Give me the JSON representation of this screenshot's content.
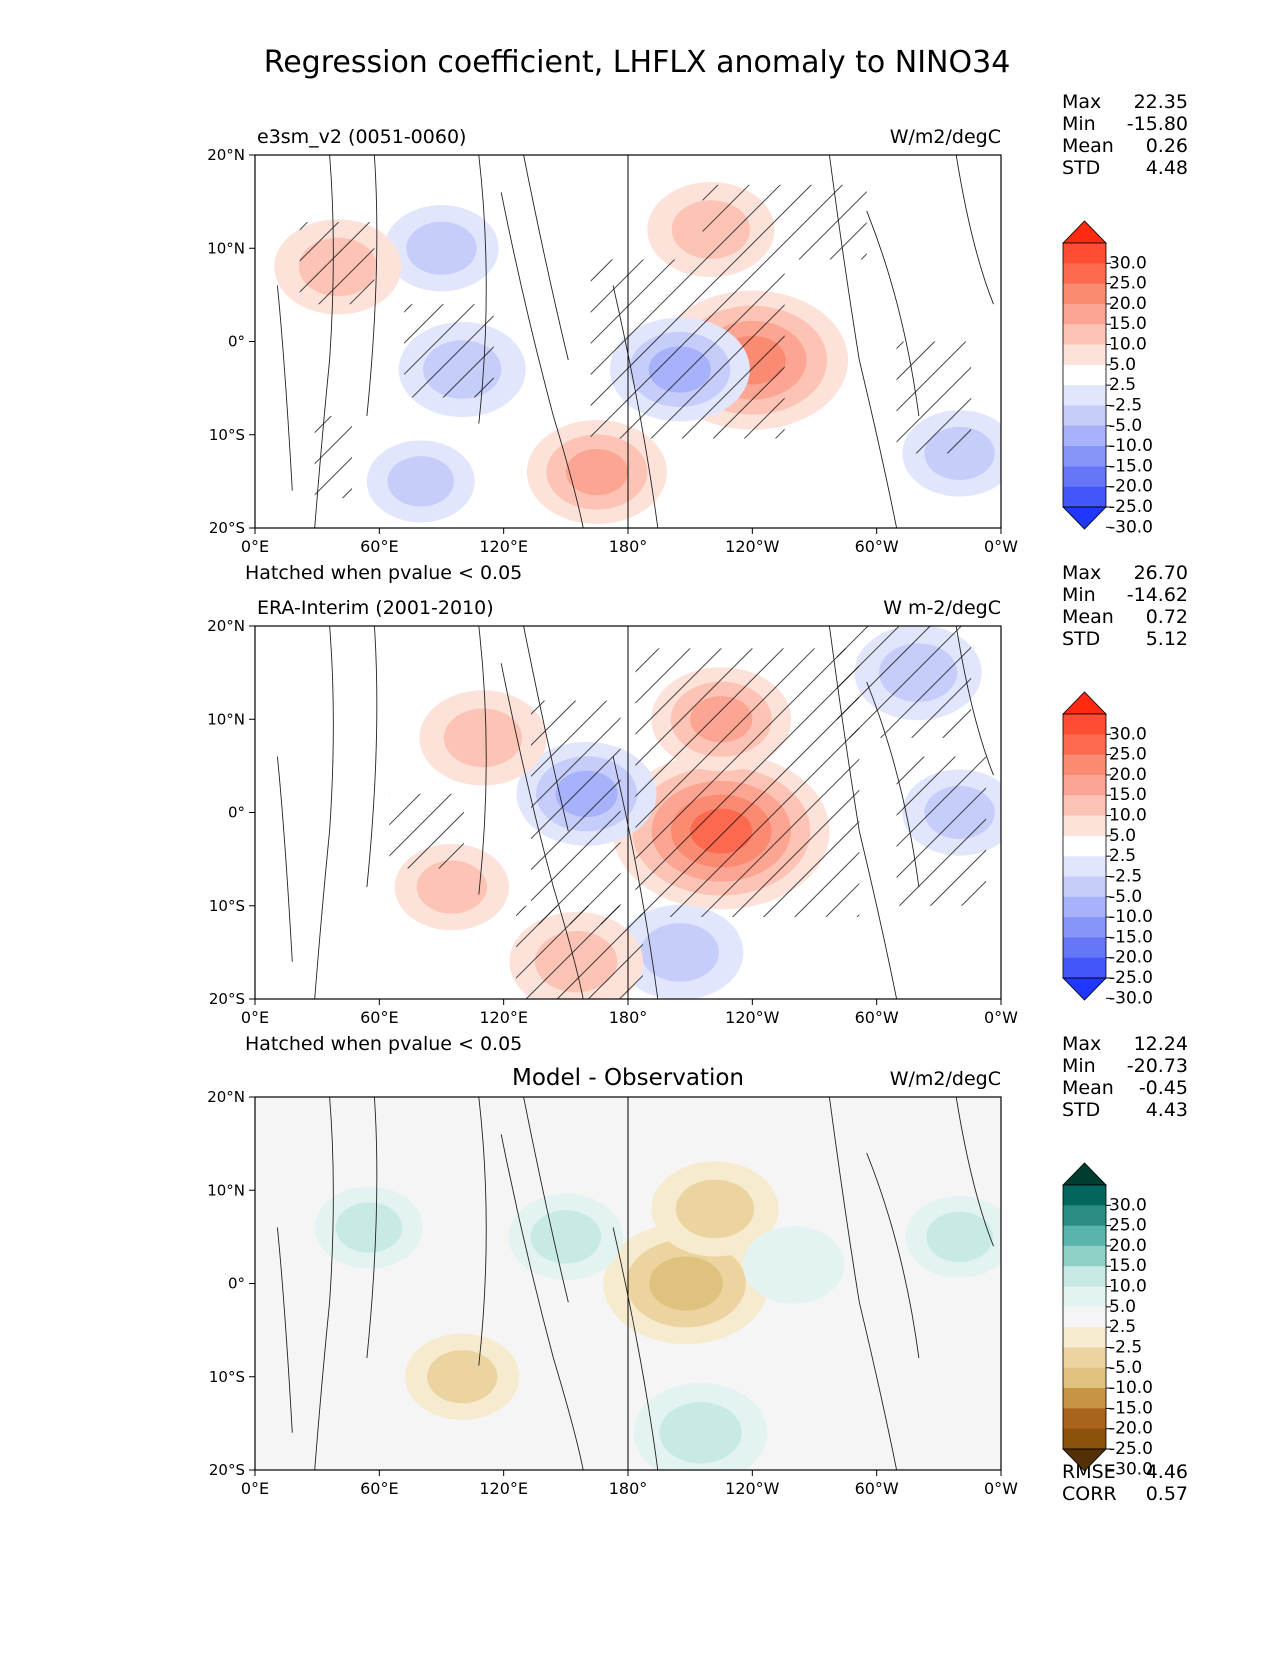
{
  "figure": {
    "title": "Regression coefficient, LHFLX anomaly to NINO34"
  },
  "colorbar_ticks": [
    "30.0",
    "25.0",
    "20.0",
    "15.0",
    "10.0",
    "5.0",
    "2.5",
    "-2.5",
    "-5.0",
    "-10.0",
    "-15.0",
    "-20.0",
    "-25.0",
    "-30.0"
  ],
  "colors": {
    "diverging_red_blue": [
      "#ff2a10",
      "#ff4d33",
      "#fd6a50",
      "#fb8a72",
      "#fca592",
      "#fdc3b4",
      "#fde2da",
      "#ffffff",
      "#e2e6fd",
      "#c6cdfb",
      "#a7b2fa",
      "#8795f9",
      "#6676f9",
      "#4356fb",
      "#1f37fe"
    ],
    "diverging_brbg": [
      "#003d30",
      "#01665e",
      "#2a8c83",
      "#5ab4ac",
      "#8fd1c6",
      "#c7eae5",
      "#e3f3f1",
      "#f5f5f5",
      "#f6ebcf",
      "#ebd4a0",
      "#dfc27d",
      "#c79446",
      "#a8631c",
      "#8c510a",
      "#543005"
    ]
  },
  "axes": {
    "x_ticks": [
      "0°E",
      "60°E",
      "120°E",
      "180°",
      "120°W",
      "60°W",
      "0°W"
    ],
    "y_ticks": [
      "20°N",
      "10°N",
      "0°",
      "10°S",
      "20°S"
    ]
  },
  "panels": [
    {
      "left_title": "e3sm_v2 (0051-0060)",
      "center_title": "",
      "units": "W/m2/degC",
      "stats": [
        [
          "Max",
          "22.35"
        ],
        [
          "Min",
          "-15.80"
        ],
        [
          "Mean",
          "0.26"
        ],
        [
          "STD",
          "4.48"
        ]
      ],
      "note": "Hatched when pvalue < 0.05",
      "cmap": "diverging_red_blue"
    },
    {
      "left_title": "ERA-Interim (2001-2010)",
      "center_title": "",
      "units": "W m-2/degC",
      "stats": [
        [
          "Max",
          "26.70"
        ],
        [
          "Min",
          "-14.62"
        ],
        [
          "Mean",
          "0.72"
        ],
        [
          "STD",
          "5.12"
        ]
      ],
      "note": "Hatched when pvalue < 0.05",
      "cmap": "diverging_red_blue"
    },
    {
      "left_title": "",
      "center_title": "Model - Observation",
      "units": "W/m2/degC",
      "stats": [
        [
          "Max",
          "12.24"
        ],
        [
          "Min",
          "-20.73"
        ],
        [
          "Mean",
          "-0.45"
        ],
        [
          "STD",
          "4.43"
        ]
      ],
      "note": "",
      "cmap": "diverging_brbg",
      "extra_stats": [
        [
          "RMSE",
          "4.46"
        ],
        [
          "CORR",
          "0.57"
        ]
      ]
    }
  ],
  "chart_data": [
    {
      "type": "heatmap",
      "title": "e3sm_v2 (0051-0060)",
      "units": "W/m2/degC",
      "xlim": [
        0,
        360
      ],
      "ylim": [
        -20,
        20
      ],
      "levels": [
        -30,
        -25,
        -20,
        -15,
        -10,
        -5,
        -2.5,
        2.5,
        5,
        10,
        15,
        20,
        25,
        30
      ],
      "features": [
        {
          "lon": 240,
          "lat": -2,
          "value": 18
        },
        {
          "lon": 205,
          "lat": -3,
          "value": -10
        },
        {
          "lon": 100,
          "lat": -3,
          "value": -8
        },
        {
          "lon": 90,
          "lat": 10,
          "value": -6
        },
        {
          "lon": 165,
          "lat": -14,
          "value": 10
        },
        {
          "lon": 40,
          "lat": 8,
          "value": 8
        },
        {
          "lon": 220,
          "lat": 12,
          "value": 8
        },
        {
          "lon": 80,
          "lat": -15,
          "value": -5
        },
        {
          "lon": 340,
          "lat": -12,
          "value": -6
        }
      ]
    },
    {
      "type": "heatmap",
      "title": "ERA-Interim (2001-2010)",
      "units": "W m-2/degC",
      "xlim": [
        0,
        360
      ],
      "ylim": [
        -20,
        20
      ],
      "levels": [
        -30,
        -25,
        -20,
        -15,
        -10,
        -5,
        -2.5,
        2.5,
        5,
        10,
        15,
        20,
        25,
        30
      ],
      "features": [
        {
          "lon": 225,
          "lat": -2,
          "value": 22
        },
        {
          "lon": 225,
          "lat": 10,
          "value": 10
        },
        {
          "lon": 160,
          "lat": 2,
          "value": -10
        },
        {
          "lon": 205,
          "lat": -15,
          "value": -8
        },
        {
          "lon": 155,
          "lat": -16,
          "value": 9
        },
        {
          "lon": 110,
          "lat": 8,
          "value": 8
        },
        {
          "lon": 320,
          "lat": 15,
          "value": -8
        },
        {
          "lon": 340,
          "lat": 0,
          "value": -6
        },
        {
          "lon": 95,
          "lat": -8,
          "value": 6
        }
      ]
    },
    {
      "type": "heatmap",
      "title": "Model - Observation",
      "units": "W/m2/degC",
      "xlim": [
        0,
        360
      ],
      "ylim": [
        -20,
        20
      ],
      "levels": [
        -30,
        -25,
        -20,
        -15,
        -10,
        -5,
        -2.5,
        2.5,
        5,
        10,
        15,
        20,
        25,
        30
      ],
      "features": [
        {
          "lon": 208,
          "lat": 0,
          "value": -14
        },
        {
          "lon": 222,
          "lat": 8,
          "value": -8
        },
        {
          "lon": 100,
          "lat": -10,
          "value": -6
        },
        {
          "lon": 150,
          "lat": 5,
          "value": 6
        },
        {
          "lon": 215,
          "lat": -16,
          "value": 9
        },
        {
          "lon": 55,
          "lat": 6,
          "value": 5
        },
        {
          "lon": 260,
          "lat": 2,
          "value": 4
        },
        {
          "lon": 340,
          "lat": 5,
          "value": 5
        }
      ]
    }
  ]
}
